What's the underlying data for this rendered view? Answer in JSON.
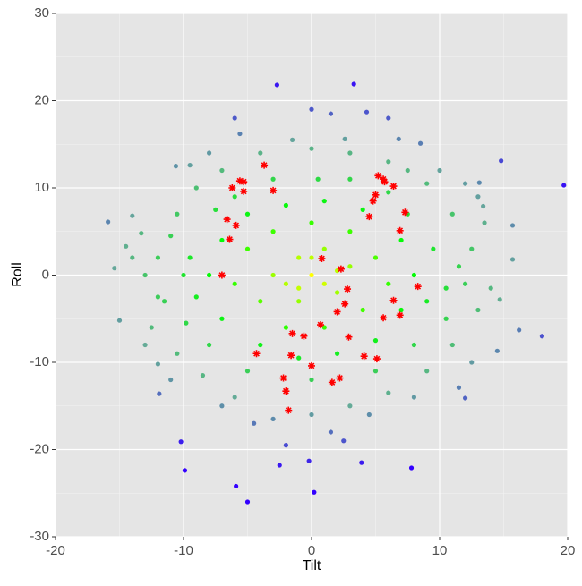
{
  "chart_data": {
    "type": "scatter",
    "x_label": "Tilt",
    "y_label": "Roll",
    "xlim": [
      -20,
      20
    ],
    "ylim": [
      -30,
      30
    ],
    "xticks": [
      -20,
      -10,
      0,
      10,
      20
    ],
    "yticks": [
      -30,
      -20,
      -10,
      0,
      10,
      20,
      30
    ],
    "grid": true,
    "color_scale": [
      "#ffff00",
      "#00ff00",
      "#66aa99",
      "#3300ff"
    ],
    "series": [
      {
        "marker": "dot",
        "x": [
          -2.7,
          3.3,
          4.3,
          1.5,
          19.7,
          14.8,
          -15.9,
          -5.0,
          -5.9,
          0.2,
          -9.9,
          7.8,
          -10.2,
          18.0,
          16.2,
          -15.0,
          15.7,
          12.0,
          13.1,
          -15.4,
          -14.5,
          -14.0,
          -13.3,
          -12.0,
          -11.9,
          14.5,
          12.0,
          11.5,
          3.9,
          -0.2,
          -2.5,
          8.5,
          6.8,
          -5.6,
          2.6,
          -10.6,
          -9.5,
          13.4,
          14.7,
          15.7,
          -12,
          -11.5,
          -12.5,
          -10.5,
          -9,
          -7,
          -4,
          0,
          3,
          6,
          9,
          11,
          12.5,
          12,
          13,
          11,
          9,
          6,
          3,
          0,
          -3,
          -6,
          -8.5,
          -10.5,
          -13,
          -11,
          10.5,
          -9.8,
          7.5,
          -1.5,
          4.5,
          -4.5,
          11.5,
          -12,
          8,
          -7,
          1.5,
          -2,
          2.5,
          10,
          -8,
          13.5,
          -14,
          14,
          12.5,
          -11,
          -6,
          6,
          0,
          -13,
          13,
          -8,
          -7,
          -5,
          -2,
          1,
          4,
          7,
          8,
          7,
          5,
          2,
          -1,
          -4,
          -7,
          -6,
          -5,
          -3,
          0,
          3,
          5,
          6,
          4,
          1,
          -2,
          -4,
          -3,
          -1,
          1,
          3,
          2,
          -1,
          0,
          -2,
          1,
          0,
          -1,
          2,
          -9.5,
          9.5,
          9,
          -9,
          -6,
          6,
          -3,
          3,
          -5,
          5,
          0,
          -8,
          8,
          0.5,
          -10,
          10.5,
          -7.5,
          7.5
        ],
        "values": [
          21.8,
          21.9,
          18.7,
          18.5,
          10.3,
          13.1,
          6.1,
          -26.0,
          -24.2,
          -24.9,
          -22.4,
          -22.1,
          -19.1,
          -7.0,
          -6.3,
          -5.2,
          5.7,
          10.5,
          10.6,
          0.8,
          3.3,
          6.8,
          4.8,
          -10.2,
          -13.6,
          -8.7,
          -14.1,
          -12.9,
          -21.5,
          -21.3,
          -21.8,
          15.1,
          15.6,
          16.2,
          15.6,
          12.5,
          12.6,
          7.9,
          -2.8,
          1.8,
          2,
          -3,
          -6,
          7,
          10,
          12,
          14,
          14.5,
          14,
          13,
          10.5,
          7,
          3,
          -1,
          -4,
          -8,
          -11,
          -13.5,
          -15,
          -16,
          -16.5,
          -14,
          -11.5,
          -9,
          0,
          4.5,
          -5,
          -5.5,
          12,
          15.5,
          -16,
          -17,
          1,
          -2.5,
          -14,
          -15,
          -18,
          -19.5,
          -19,
          12,
          14,
          6,
          2,
          -1.5,
          -10,
          -12,
          18,
          18,
          19,
          -8,
          9,
          0,
          4,
          7,
          8,
          8.5,
          7.5,
          4,
          0,
          -4,
          -7.5,
          -9,
          -9.5,
          -8,
          -5,
          -1,
          3,
          5,
          6,
          5,
          2,
          -1,
          -4,
          -6,
          -6,
          -3,
          0,
          2,
          3,
          1,
          -2,
          -3,
          0,
          -1,
          -1,
          2,
          -1.5,
          0.5,
          2,
          3,
          -3,
          -2.5,
          9,
          9.5,
          11,
          11,
          -11,
          -11,
          -12,
          -8,
          -8,
          11,
          0,
          -1.5,
          7.5,
          7
        ]
      },
      {
        "marker": "star",
        "color": "#ff0000",
        "x": [
          -3.7,
          -5.6,
          -5.3,
          -6.2,
          -5.3,
          -3.0,
          5.2,
          5.6,
          5.7,
          6.4,
          5.0,
          4.8,
          7.3,
          4.5,
          6.9,
          -6.6,
          -5.9,
          -6.4,
          -7.0,
          0.8,
          2.3,
          2.8,
          2.0,
          2.6,
          0.7,
          -0.6,
          -1.5,
          2.9,
          5.6,
          6.9,
          6.4,
          8.3,
          4.1,
          5.1,
          -4.3,
          -1.6,
          0.0,
          -2.2,
          -2.0,
          1.6,
          2.2,
          -1.8
        ],
        "values": [
          12.6,
          10.8,
          10.7,
          10.0,
          9.6,
          9.7,
          11.4,
          11.0,
          10.7,
          10.2,
          9.2,
          8.5,
          7.2,
          6.7,
          5.1,
          6.4,
          5.7,
          4.1,
          0.0,
          1.9,
          0.7,
          -1.6,
          -4.2,
          -3.3,
          -5.7,
          -7.0,
          -6.7,
          -7.1,
          -4.9,
          -4.6,
          -2.9,
          -1.3,
          -9.3,
          -9.6,
          -9.0,
          -9.2,
          -10.4,
          -11.8,
          -13.3,
          -12.3,
          -11.8,
          -15.5
        ]
      }
    ]
  }
}
